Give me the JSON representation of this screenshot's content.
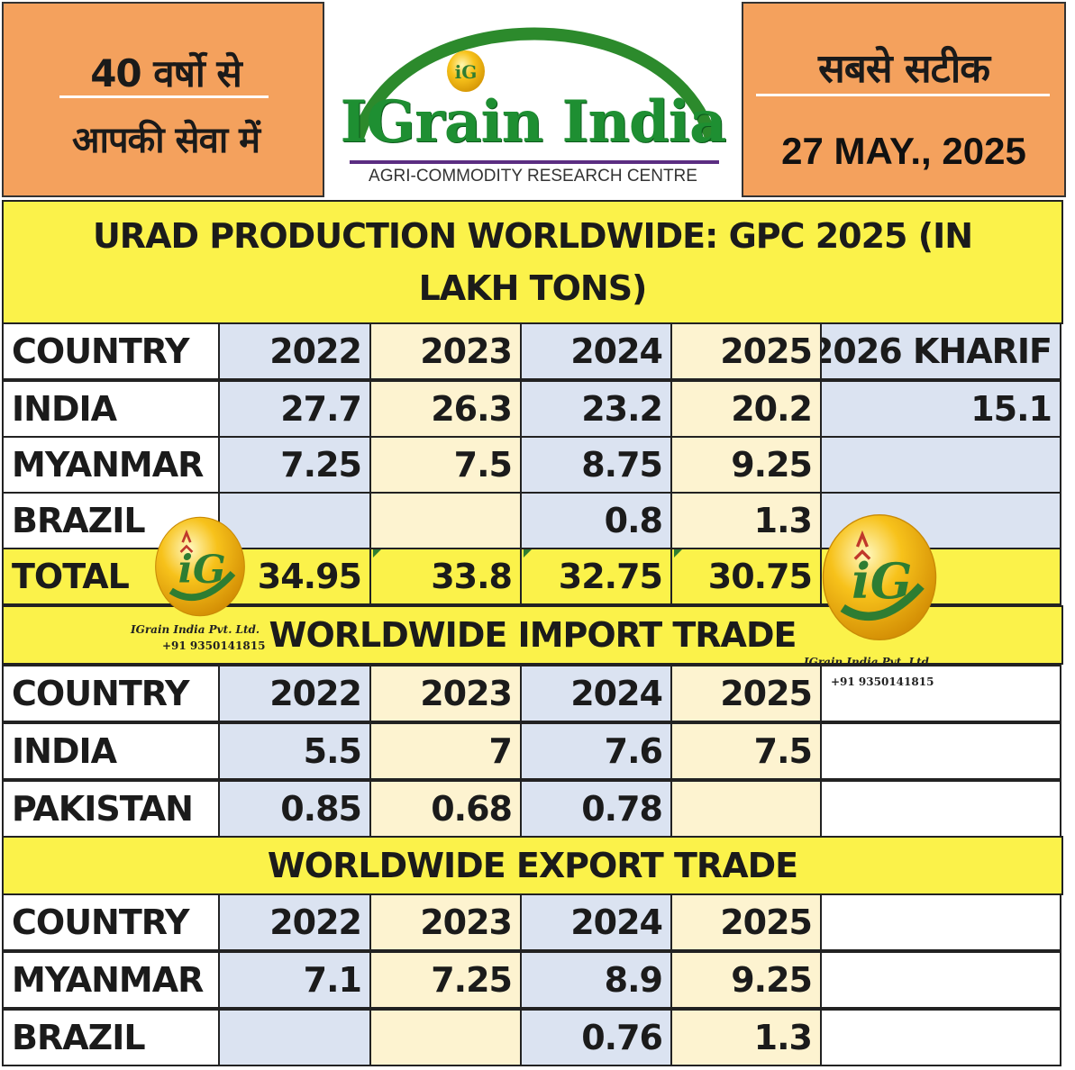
{
  "header": {
    "left_line1": "40 वर्षो से",
    "left_line2": "आपकी सेवा में",
    "brand": "IGrain India",
    "tagline": "AGRI-COMMODITY RESEARCH CENTRE",
    "right_line1": "सबसे सटीक",
    "date": "27 MAY., 2025",
    "colors": {
      "band": "#f4a15d",
      "brand_green": "#1e8f32",
      "arc_green": "#2c8a2c",
      "rule_purple": "#5b2d82"
    }
  },
  "production": {
    "title": "URAD PRODUCTION WORLDWIDE: GPC 2025 (IN LAKH TONS)",
    "columns": [
      "COUNTRY",
      "2022",
      "2023",
      "2024",
      "2025",
      "2026 KHARIF"
    ],
    "rows": [
      {
        "country": "INDIA",
        "values": [
          "27.7",
          "26.3",
          "23.2",
          "20.2",
          "15.1"
        ]
      },
      {
        "country": "MYANMAR",
        "values": [
          "7.25",
          "7.5",
          "8.75",
          "9.25",
          ""
        ]
      },
      {
        "country": "BRAZIL",
        "values": [
          "",
          "",
          "0.8",
          "1.3",
          ""
        ]
      }
    ],
    "total": {
      "label": "TOTAL",
      "values": [
        "34.95",
        "33.8",
        "32.75",
        "30.75",
        ""
      ]
    }
  },
  "import_trade": {
    "title": "WORLDWIDE IMPORT TRADE",
    "columns": [
      "COUNTRY",
      "2022",
      "2023",
      "2024",
      "2025",
      ""
    ],
    "rows": [
      {
        "country": "INDIA",
        "values": [
          "5.5",
          "7",
          "7.6",
          "7.5",
          ""
        ]
      },
      {
        "country": "PAKISTAN",
        "values": [
          "0.85",
          "0.68",
          "0.78",
          "",
          ""
        ]
      }
    ]
  },
  "export_trade": {
    "title": "WORLDWIDE EXPORT TRADE",
    "columns": [
      "COUNTRY",
      "2022",
      "2023",
      "2024",
      "2025",
      ""
    ],
    "rows": [
      {
        "country": "MYANMAR",
        "values": [
          "7.1",
          "7.25",
          "8.9",
          "9.25",
          ""
        ]
      },
      {
        "country": "BRAZIL",
        "values": [
          "",
          "",
          "0.76",
          "1.3",
          ""
        ]
      }
    ]
  },
  "watermark": {
    "logo_text": "iG",
    "company": "IGrain India Pvt. Ltd.",
    "phone": "+91 9350141815",
    "icon": "wheat-coin-logo-icon",
    "colors": {
      "coin": "#f7c21b",
      "letters": "#2e7d32"
    }
  },
  "palette": {
    "yellow": "#fbf24a",
    "blue": "#dbe3f1",
    "cream": "#fdf3d0"
  }
}
